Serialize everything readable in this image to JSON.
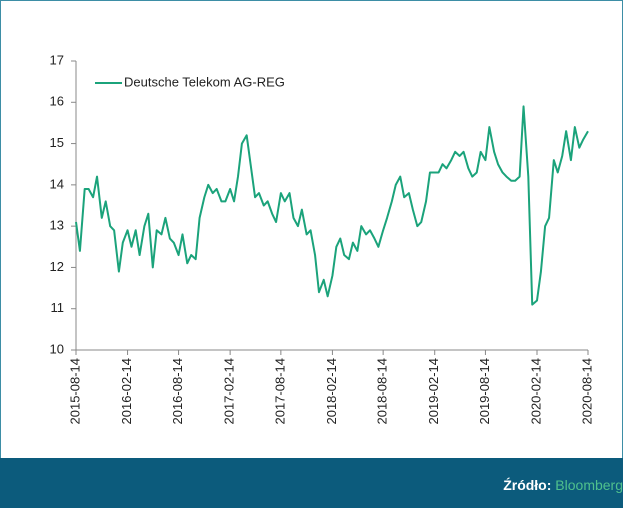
{
  "chart_data": {
    "type": "line",
    "x": [
      "2015-08-14",
      "2015-08-28",
      "2015-09-14",
      "2015-09-28",
      "2015-10-14",
      "2015-10-28",
      "2015-11-14",
      "2015-11-28",
      "2015-12-14",
      "2015-12-28",
      "2016-01-14",
      "2016-01-28",
      "2016-02-14",
      "2016-02-28",
      "2016-03-14",
      "2016-03-28",
      "2016-04-14",
      "2016-04-28",
      "2016-05-14",
      "2016-05-28",
      "2016-06-14",
      "2016-06-28",
      "2016-07-14",
      "2016-07-28",
      "2016-08-14",
      "2016-08-28",
      "2016-09-14",
      "2016-09-28",
      "2016-10-14",
      "2016-10-28",
      "2016-11-14",
      "2016-11-28",
      "2016-12-14",
      "2016-12-28",
      "2017-01-14",
      "2017-01-28",
      "2017-02-14",
      "2017-02-28",
      "2017-03-14",
      "2017-03-28",
      "2017-04-14",
      "2017-04-28",
      "2017-05-14",
      "2017-05-28",
      "2017-06-14",
      "2017-06-28",
      "2017-07-14",
      "2017-07-28",
      "2017-08-14",
      "2017-08-28",
      "2017-09-14",
      "2017-09-28",
      "2017-10-14",
      "2017-10-28",
      "2017-11-14",
      "2017-11-28",
      "2017-12-14",
      "2017-12-28",
      "2018-01-14",
      "2018-01-28",
      "2018-02-14",
      "2018-02-28",
      "2018-03-14",
      "2018-03-28",
      "2018-04-14",
      "2018-04-28",
      "2018-05-14",
      "2018-05-28",
      "2018-06-14",
      "2018-06-28",
      "2018-07-14",
      "2018-07-28",
      "2018-08-14",
      "2018-08-28",
      "2018-09-14",
      "2018-09-28",
      "2018-10-14",
      "2018-10-28",
      "2018-11-14",
      "2018-11-28",
      "2018-12-14",
      "2018-12-28",
      "2019-01-14",
      "2019-01-28",
      "2019-02-14",
      "2019-02-28",
      "2019-03-14",
      "2019-03-28",
      "2019-04-14",
      "2019-04-28",
      "2019-05-14",
      "2019-05-28",
      "2019-06-14",
      "2019-06-28",
      "2019-07-14",
      "2019-07-28",
      "2019-08-14",
      "2019-08-28",
      "2019-09-14",
      "2019-09-28",
      "2019-10-14",
      "2019-10-28",
      "2019-11-14",
      "2019-11-28",
      "2019-12-14",
      "2019-12-28",
      "2020-01-14",
      "2020-01-28",
      "2020-02-14",
      "2020-02-28",
      "2020-03-14",
      "2020-03-28",
      "2020-04-14",
      "2020-04-28",
      "2020-05-14",
      "2020-05-28",
      "2020-06-14",
      "2020-06-28",
      "2020-07-14",
      "2020-07-28",
      "2020-08-14"
    ],
    "series": [
      {
        "name": "Deutsche Telekom AG-REG",
        "color": "#1ba37b",
        "values": [
          13.1,
          12.4,
          13.9,
          13.9,
          13.7,
          14.2,
          13.2,
          13.6,
          13.0,
          12.9,
          11.9,
          12.6,
          12.9,
          12.5,
          12.9,
          12.3,
          13.0,
          13.3,
          12.0,
          12.9,
          12.8,
          13.2,
          12.7,
          12.6,
          12.3,
          12.8,
          12.1,
          12.3,
          12.2,
          13.2,
          13.7,
          14.0,
          13.8,
          13.9,
          13.6,
          13.6,
          13.9,
          13.6,
          14.2,
          15.0,
          15.2,
          14.5,
          13.7,
          13.8,
          13.5,
          13.6,
          13.3,
          13.1,
          13.8,
          13.6,
          13.8,
          13.2,
          13.0,
          13.4,
          12.8,
          12.9,
          12.3,
          11.4,
          11.7,
          11.3,
          11.8,
          12.5,
          12.7,
          12.3,
          12.2,
          12.6,
          12.4,
          13.0,
          12.8,
          12.9,
          12.7,
          12.5,
          12.9,
          13.2,
          13.6,
          14.0,
          14.2,
          13.7,
          13.8,
          13.4,
          13.0,
          13.1,
          13.6,
          14.3,
          14.3,
          14.3,
          14.5,
          14.4,
          14.6,
          14.8,
          14.7,
          14.8,
          14.4,
          14.2,
          14.3,
          14.8,
          14.6,
          15.4,
          14.8,
          14.5,
          14.3,
          14.2,
          14.1,
          14.1,
          14.2,
          15.9,
          14.2,
          11.1,
          11.2,
          11.9,
          13.0,
          13.2,
          14.6,
          14.3,
          14.7,
          15.3,
          14.6,
          15.4,
          14.9,
          15.1,
          15.3
        ]
      }
    ],
    "xlim": [
      "2015-08-14",
      "2020-08-14"
    ],
    "xticks": [
      "2015-08-14",
      "2016-02-14",
      "2016-08-14",
      "2017-02-14",
      "2017-08-14",
      "2018-02-14",
      "2018-08-14",
      "2019-02-14",
      "2019-08-14",
      "2020-02-14",
      "2020-08-14"
    ],
    "ylim": [
      10,
      17
    ],
    "yticks": [
      10,
      11,
      12,
      13,
      14,
      15,
      16,
      17
    ],
    "legend": "top-left"
  },
  "footer": {
    "label": "Źródło:",
    "source": "Bloomberg"
  }
}
